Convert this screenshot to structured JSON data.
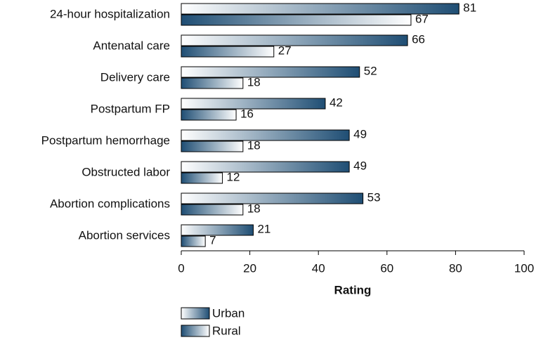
{
  "chart_data": {
    "type": "bar",
    "orientation": "horizontal",
    "categories": [
      "24-hour hospitalization",
      "Antenatal care",
      "Delivery care",
      "Postpartum FP",
      "Postpartum hemorrhage",
      "Obstructed labor",
      "Abortion complications",
      "Abortion services"
    ],
    "series": [
      {
        "name": "Urban",
        "color": "#1f4e74",
        "values": [
          81,
          66,
          52,
          42,
          49,
          49,
          53,
          21
        ]
      },
      {
        "name": "Rural",
        "color": "#1f4e74",
        "values": [
          67,
          27,
          18,
          16,
          18,
          12,
          18,
          7
        ]
      }
    ],
    "xlabel": "Rating",
    "xlim": [
      0,
      100
    ],
    "xticks": [
      0,
      20,
      40,
      60,
      80,
      100
    ]
  }
}
